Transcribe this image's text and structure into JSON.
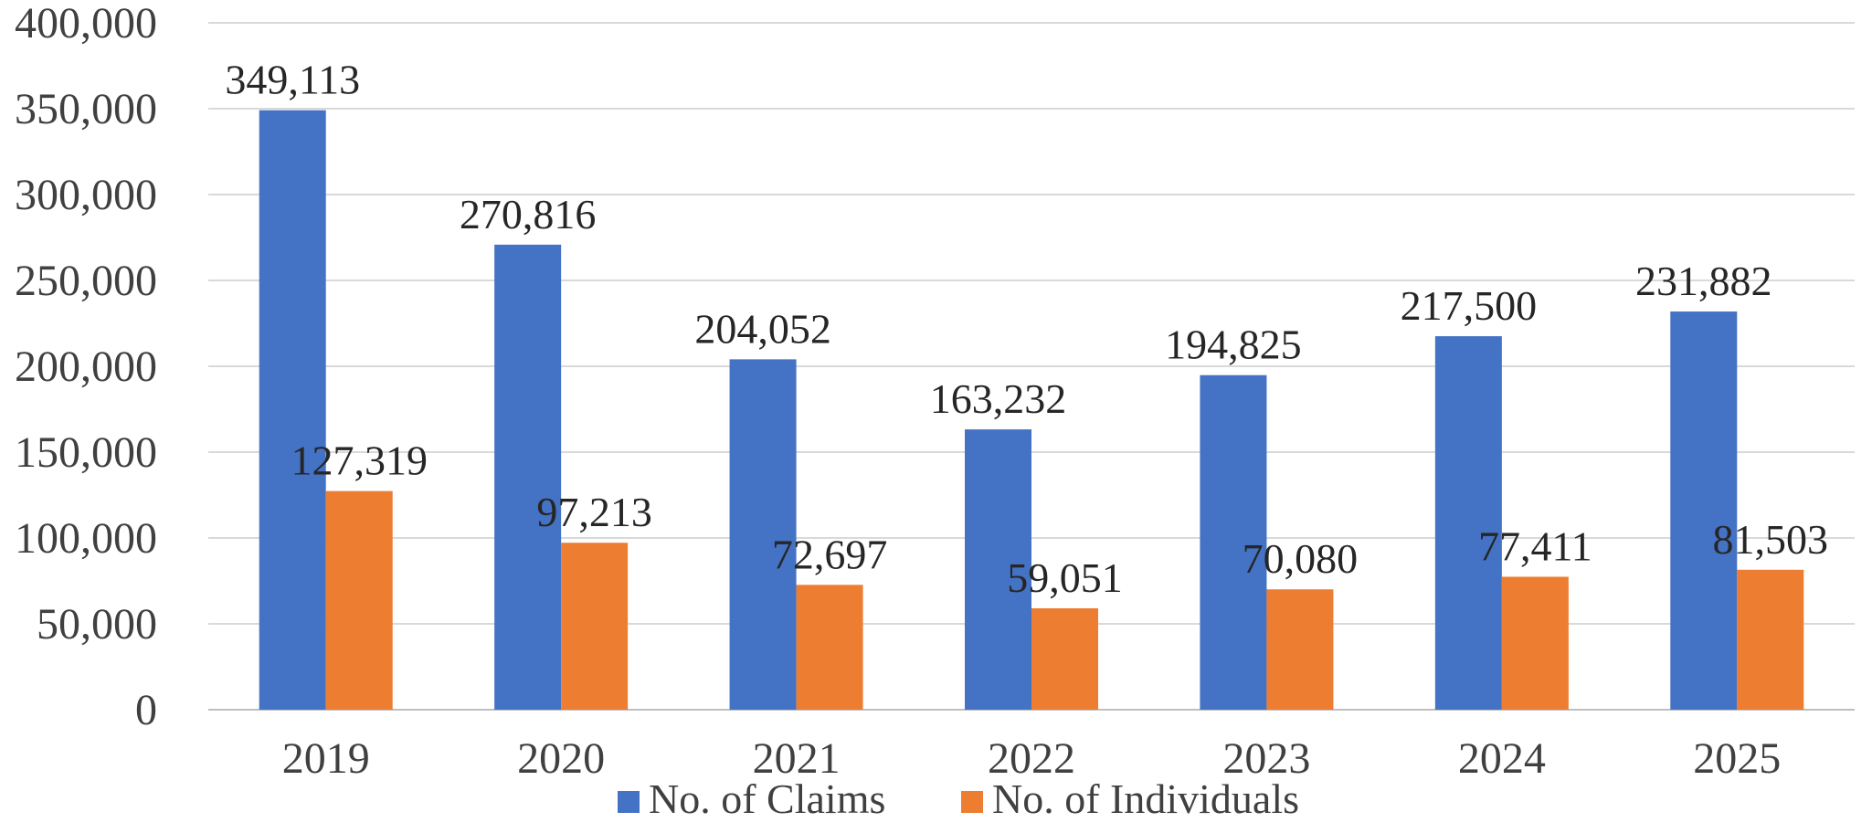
{
  "chart_data": {
    "type": "bar",
    "title": "",
    "xlabel": "",
    "ylabel": "",
    "categories": [
      "2019",
      "2020",
      "2021",
      "2022",
      "2023",
      "2024",
      "2025"
    ],
    "series": [
      {
        "name": "No. of Claims",
        "color": "#4472C4",
        "values": [
          349113,
          270816,
          204052,
          163232,
          194825,
          217500,
          231882
        ],
        "labels": [
          "349,113",
          "270,816",
          "204,052",
          "163,232",
          "194,825",
          "217,500",
          "231,882"
        ]
      },
      {
        "name": "No. of Individuals",
        "color": "#ED7D31",
        "values": [
          127319,
          97213,
          72697,
          59051,
          70080,
          77411,
          81503
        ],
        "labels": [
          "127,319",
          "97,213",
          "72,697",
          "59,051",
          "70,080",
          "77,411",
          "81,503"
        ]
      }
    ],
    "ylim": [
      0,
      400000
    ],
    "yticks": [
      0,
      50000,
      100000,
      150000,
      200000,
      250000,
      300000,
      350000,
      400000
    ],
    "ytick_labels": [
      "0",
      "50,000",
      "100,000",
      "150,000",
      "200,000",
      "250,000",
      "300,000",
      "350,000",
      "400,000"
    ],
    "grid": true,
    "legend_position": "bottom"
  }
}
